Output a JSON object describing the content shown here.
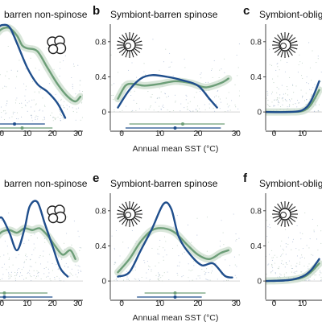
{
  "colors": {
    "blue": "#1f4e8c",
    "green": "#6d9e78",
    "band": "#c9dccb",
    "axis": "#333333"
  },
  "chart_data": [
    {
      "type": "line",
      "panel": "a",
      "letter": "",
      "title": "barren non-spinose",
      "xlabel": "",
      "ylabel": "",
      "xlim": [
        -2,
        32
      ],
      "ylim": [
        0,
        1.0
      ],
      "xticks": [
        0,
        10,
        20,
        30
      ],
      "yticks": [],
      "glyph": "non-spinose-icon",
      "series": [
        {
          "color": "blue",
          "x": [
            -2,
            0,
            3,
            6,
            10,
            14,
            18,
            22,
            25
          ],
          "y": [
            0.95,
            0.99,
            0.97,
            0.8,
            0.55,
            0.38,
            0.3,
            0.18,
            0.03
          ]
        },
        {
          "color": "green",
          "x": [
            -2,
            0,
            3,
            6,
            8,
            10,
            14,
            18,
            22,
            26,
            29,
            31
          ],
          "y": [
            0.9,
            0.95,
            0.96,
            0.88,
            0.78,
            0.75,
            0.72,
            0.55,
            0.38,
            0.25,
            0.2,
            0.25
          ]
        }
      ],
      "ranges": [
        {
          "color": "blue",
          "from": -2,
          "to": 17,
          "mid": 5
        },
        {
          "color": "green",
          "from": -2,
          "to": 20,
          "mid": 8
        }
      ]
    },
    {
      "type": "line",
      "panel": "b",
      "letter": "b",
      "title": "Symbiont-barren spinose",
      "xlabel": "Annual mean SST (°C)",
      "ylabel": "",
      "xlim": [
        -3,
        31
      ],
      "ylim": [
        -0.1,
        1.0
      ],
      "xticks": [
        0,
        10,
        20,
        30
      ],
      "yticks": [
        0,
        0.4,
        0.8
      ],
      "glyph": "spinose-icon",
      "series": [
        {
          "color": "blue",
          "x": [
            -1,
            2,
            5,
            8,
            12,
            16,
            20,
            23,
            25
          ],
          "y": [
            0.05,
            0.25,
            0.38,
            0.42,
            0.4,
            0.36,
            0.3,
            0.15,
            0.05
          ]
        },
        {
          "color": "green",
          "x": [
            -1,
            1,
            3,
            6,
            10,
            14,
            18,
            22,
            26,
            28
          ],
          "y": [
            0.15,
            0.3,
            0.32,
            0.3,
            0.32,
            0.35,
            0.33,
            0.28,
            0.33,
            0.38
          ]
        }
      ],
      "ranges": [
        {
          "color": "green",
          "from": 2,
          "to": 27,
          "mid": 16
        },
        {
          "color": "blue",
          "from": 1,
          "to": 26,
          "mid": 14
        }
      ]
    },
    {
      "type": "line",
      "panel": "c",
      "letter": "c",
      "title": "Symbiont-oblig",
      "xlabel": "",
      "ylabel": "",
      "xlim": [
        -3,
        17
      ],
      "ylim": [
        -0.1,
        1.0
      ],
      "xticks": [
        0,
        10
      ],
      "yticks": [
        0,
        0.4,
        0.8
      ],
      "glyph": "spinose-icon",
      "series": [
        {
          "color": "blue",
          "x": [
            -3,
            5,
            10,
            13,
            16
          ],
          "y": [
            0,
            0,
            0.02,
            0.12,
            0.35
          ]
        },
        {
          "color": "green",
          "x": [
            -3,
            5,
            10,
            13,
            16
          ],
          "y": [
            0,
            0,
            0.01,
            0.08,
            0.25
          ]
        }
      ],
      "ranges": []
    },
    {
      "type": "line",
      "panel": "d",
      "letter": "",
      "title": "barren non-spinose",
      "xlabel": "",
      "ylabel": "",
      "xlim": [
        -2,
        32
      ],
      "ylim": [
        -0.1,
        1.0
      ],
      "xticks": [
        0,
        10,
        20,
        30
      ],
      "yticks": [],
      "glyph": "non-spinose-icon",
      "series": [
        {
          "color": "blue",
          "x": [
            -2,
            0,
            3,
            6,
            9,
            11,
            14,
            17,
            20,
            23,
            26
          ],
          "y": [
            0.68,
            0.72,
            0.55,
            0.35,
            0.6,
            0.85,
            0.9,
            0.65,
            0.4,
            0.15,
            0.05
          ]
        },
        {
          "color": "green",
          "x": [
            -2,
            0,
            3,
            6,
            9,
            12,
            15,
            18,
            21,
            24,
            27,
            29
          ],
          "y": [
            0.5,
            0.56,
            0.58,
            0.55,
            0.6,
            0.58,
            0.6,
            0.52,
            0.4,
            0.3,
            0.35,
            0.25
          ]
        }
      ],
      "ranges": [
        {
          "color": "green",
          "from": -2,
          "to": 18,
          "mid": 1
        },
        {
          "color": "blue",
          "from": -2,
          "to": 20,
          "mid": 1
        }
      ]
    },
    {
      "type": "line",
      "panel": "e",
      "letter": "e",
      "title": "Symbiont-barren spinose",
      "xlabel": "Annual mean SST (°C)",
      "ylabel": "",
      "xlim": [
        -3,
        31
      ],
      "ylim": [
        -0.1,
        1.0
      ],
      "xticks": [
        0,
        10,
        20,
        30
      ],
      "yticks": [
        0,
        0.4,
        0.8
      ],
      "glyph": "spinose-icon",
      "series": [
        {
          "color": "blue",
          "x": [
            -1,
            2,
            5,
            8,
            11,
            13,
            15,
            18,
            21,
            24,
            27,
            29
          ],
          "y": [
            0.05,
            0.1,
            0.35,
            0.6,
            0.88,
            0.82,
            0.5,
            0.3,
            0.18,
            0.2,
            0.06,
            0.04
          ]
        },
        {
          "color": "green",
          "x": [
            -1,
            2,
            5,
            8,
            11,
            14,
            17,
            20,
            23,
            26,
            28
          ],
          "y": [
            0.1,
            0.25,
            0.45,
            0.58,
            0.6,
            0.55,
            0.42,
            0.3,
            0.25,
            0.32,
            0.35
          ]
        }
      ],
      "ranges": [
        {
          "color": "green",
          "from": 6,
          "to": 22,
          "mid": 14
        },
        {
          "color": "blue",
          "from": 4,
          "to": 21,
          "mid": 14
        }
      ]
    },
    {
      "type": "line",
      "panel": "f",
      "letter": "f",
      "title": "Symbiont-oblig",
      "xlabel": "",
      "ylabel": "",
      "xlim": [
        -3,
        17
      ],
      "ylim": [
        -0.1,
        1.0
      ],
      "xticks": [
        0,
        10
      ],
      "yticks": [
        0,
        0.4,
        0.8
      ],
      "glyph": "spinose-icon",
      "series": [
        {
          "color": "blue",
          "x": [
            -3,
            5,
            10,
            13,
            16
          ],
          "y": [
            0,
            0.01,
            0.05,
            0.12,
            0.25
          ]
        },
        {
          "color": "green",
          "x": [
            -3,
            5,
            10,
            13,
            16
          ],
          "y": [
            0,
            0.01,
            0.04,
            0.1,
            0.2
          ]
        }
      ],
      "ranges": []
    }
  ]
}
